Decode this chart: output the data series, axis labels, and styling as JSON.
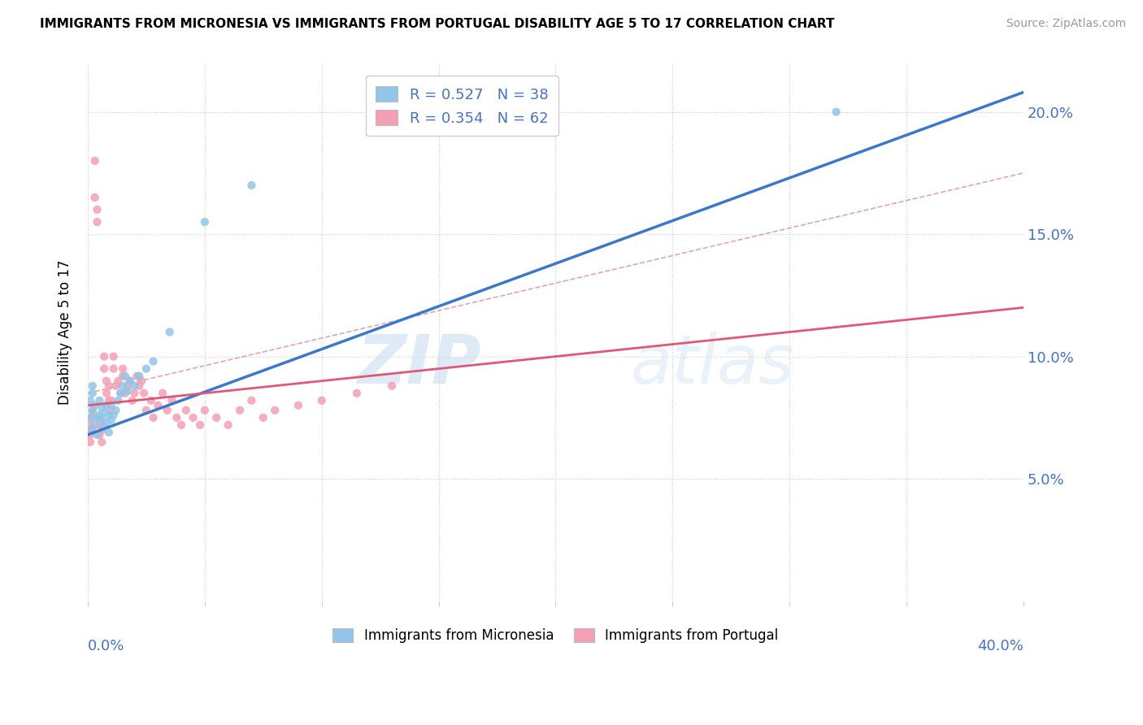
{
  "title": "IMMIGRANTS FROM MICRONESIA VS IMMIGRANTS FROM PORTUGAL DISABILITY AGE 5 TO 17 CORRELATION CHART",
  "source": "Source: ZipAtlas.com",
  "ylabel": "Disability Age 5 to 17",
  "legend_micronesia": "Immigrants from Micronesia",
  "legend_portugal": "Immigrants from Portugal",
  "R_micronesia": 0.527,
  "N_micronesia": 38,
  "R_portugal": 0.354,
  "N_portugal": 62,
  "color_micronesia": "#92C5E8",
  "color_portugal": "#F4A0B4",
  "color_line_micronesia": "#3A78C9",
  "color_line_portugal": "#E05878",
  "color_dashed": "#E08898",
  "watermark_zip": "ZIP",
  "watermark_atlas": "atlas",
  "xlim": [
    0.0,
    0.4
  ],
  "ylim": [
    0.0,
    0.22
  ],
  "y_ticks": [
    0.05,
    0.1,
    0.15,
    0.2
  ],
  "micronesia_x": [
    0.001,
    0.001,
    0.001,
    0.002,
    0.002,
    0.002,
    0.003,
    0.003,
    0.004,
    0.004,
    0.005,
    0.005,
    0.006,
    0.006,
    0.007,
    0.007,
    0.008,
    0.008,
    0.009,
    0.009,
    0.01,
    0.01,
    0.011,
    0.012,
    0.013,
    0.014,
    0.015,
    0.016,
    0.017,
    0.018,
    0.02,
    0.022,
    0.025,
    0.028,
    0.035,
    0.05,
    0.07,
    0.32
  ],
  "micronesia_y": [
    0.07,
    0.075,
    0.082,
    0.078,
    0.085,
    0.088,
    0.072,
    0.08,
    0.068,
    0.075,
    0.076,
    0.082,
    0.074,
    0.079,
    0.071,
    0.077,
    0.073,
    0.08,
    0.069,
    0.076,
    0.074,
    0.08,
    0.076,
    0.078,
    0.082,
    0.085,
    0.088,
    0.092,
    0.086,
    0.09,
    0.088,
    0.092,
    0.095,
    0.098,
    0.11,
    0.155,
    0.17,
    0.2
  ],
  "portugal_x": [
    0.001,
    0.001,
    0.001,
    0.002,
    0.002,
    0.002,
    0.003,
    0.003,
    0.004,
    0.004,
    0.005,
    0.005,
    0.005,
    0.006,
    0.006,
    0.007,
    0.007,
    0.008,
    0.008,
    0.009,
    0.009,
    0.01,
    0.01,
    0.011,
    0.011,
    0.012,
    0.013,
    0.014,
    0.015,
    0.015,
    0.016,
    0.017,
    0.018,
    0.019,
    0.02,
    0.021,
    0.022,
    0.023,
    0.024,
    0.025,
    0.027,
    0.028,
    0.03,
    0.032,
    0.034,
    0.036,
    0.038,
    0.04,
    0.042,
    0.045,
    0.048,
    0.05,
    0.055,
    0.06,
    0.065,
    0.07,
    0.075,
    0.08,
    0.09,
    0.1,
    0.115,
    0.13
  ],
  "portugal_y": [
    0.065,
    0.068,
    0.072,
    0.07,
    0.075,
    0.078,
    0.165,
    0.18,
    0.155,
    0.16,
    0.068,
    0.072,
    0.075,
    0.065,
    0.07,
    0.095,
    0.1,
    0.085,
    0.09,
    0.082,
    0.088,
    0.078,
    0.082,
    0.095,
    0.1,
    0.088,
    0.09,
    0.085,
    0.092,
    0.095,
    0.085,
    0.088,
    0.09,
    0.082,
    0.085,
    0.092,
    0.088,
    0.09,
    0.085,
    0.078,
    0.082,
    0.075,
    0.08,
    0.085,
    0.078,
    0.082,
    0.075,
    0.072,
    0.078,
    0.075,
    0.072,
    0.078,
    0.075,
    0.072,
    0.078,
    0.082,
    0.075,
    0.078,
    0.08,
    0.082,
    0.085,
    0.088
  ]
}
